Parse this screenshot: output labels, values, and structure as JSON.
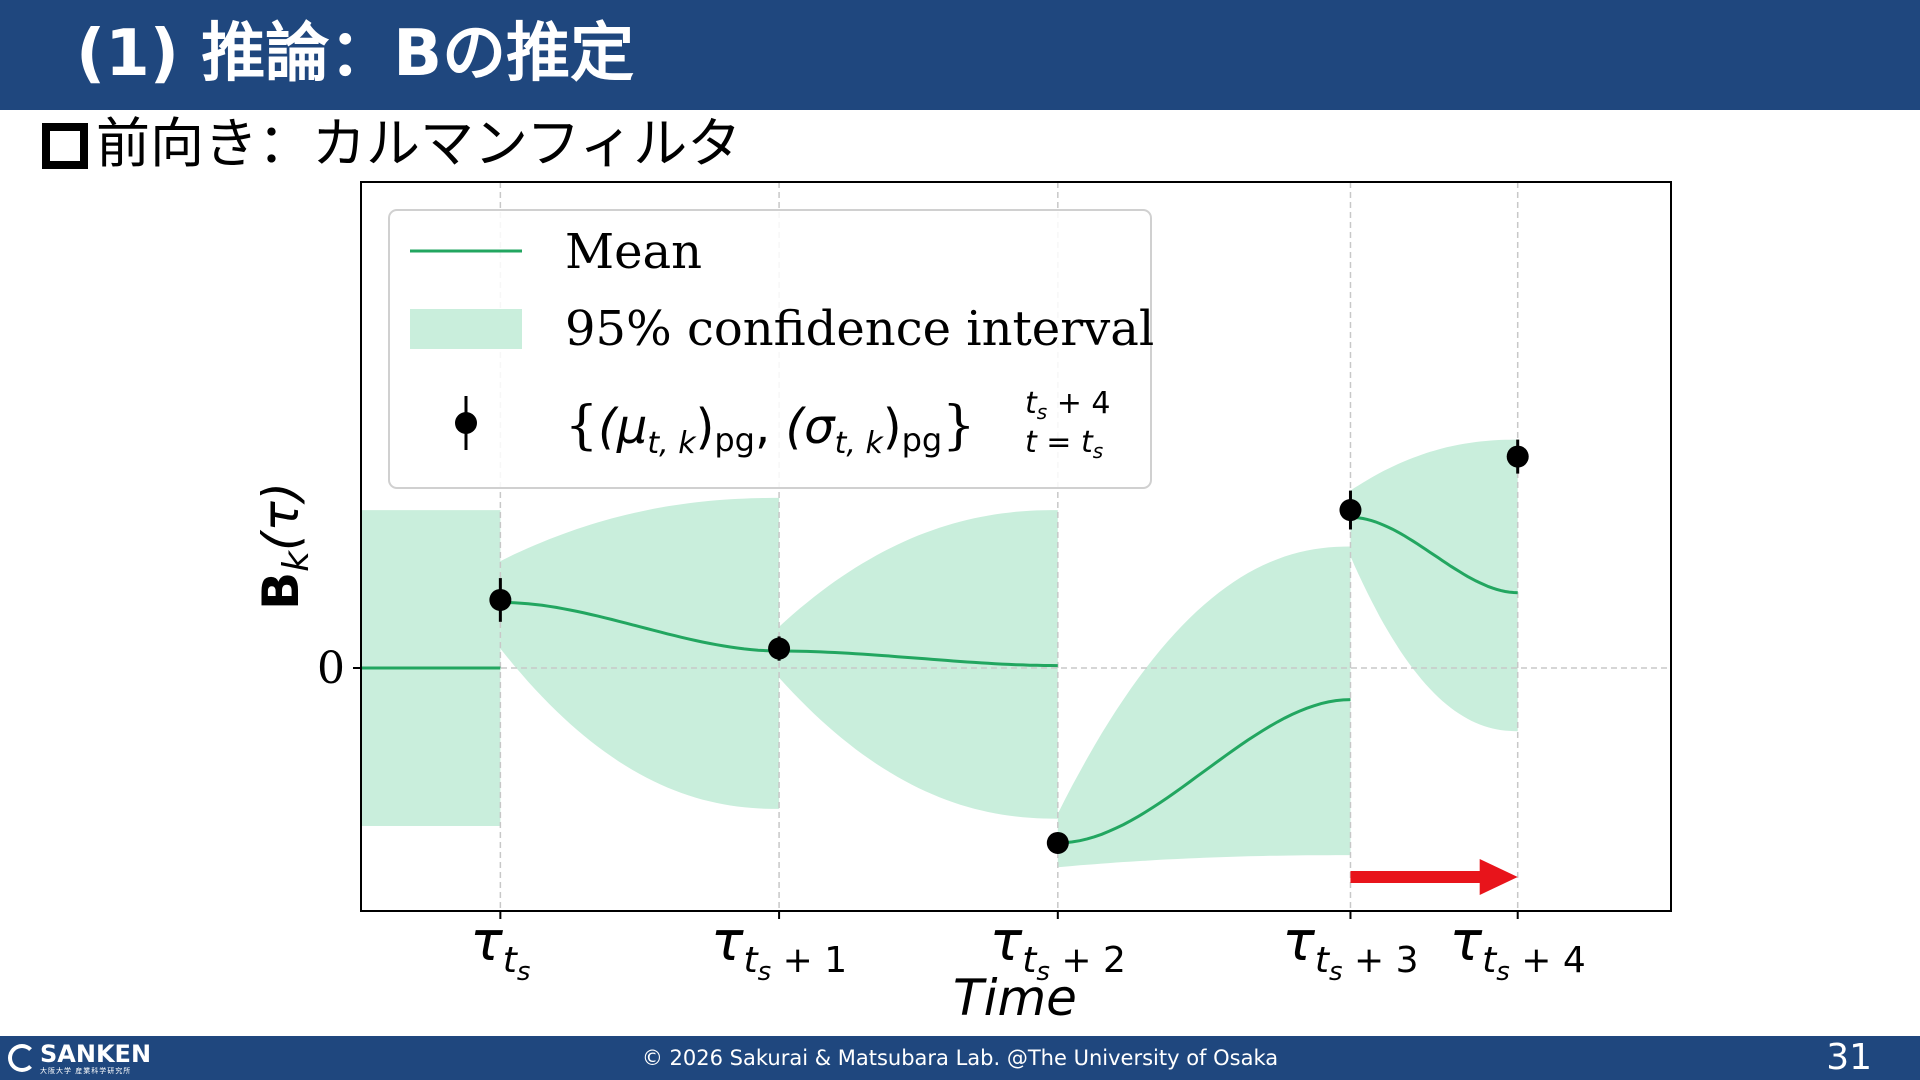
{
  "slide": {
    "title": "(1) 推論：Bの推定",
    "subheading": "前向き：カルマンフィルタ",
    "copyright": "© 2026 Sakurai & Matsubara Lab. @The University of Osaka",
    "page_number": "31",
    "logo_text": "SANKEN",
    "logo_sub": "大阪大学 産業科学研究所",
    "colors": {
      "header": "#1f477e",
      "mean": "#22a660",
      "band": "#c9eedc",
      "arrow": "#e8141b"
    }
  },
  "chart_data": {
    "type": "line",
    "xlabel": "Time",
    "ylabel_main": "B",
    "ylabel_sub": "k",
    "ylabel_tail": "(τ)",
    "x_ticks": [
      {
        "x": 0,
        "main": "τ",
        "sub": "t",
        "subsub": "s",
        "tail": ""
      },
      {
        "x": 1,
        "main": "τ",
        "sub": "t",
        "subsub": "s",
        "tail": " + 1"
      },
      {
        "x": 2,
        "main": "τ",
        "sub": "t",
        "subsub": "s",
        "tail": " + 2"
      },
      {
        "x": 3.05,
        "main": "τ",
        "sub": "t",
        "subsub": "s",
        "tail": " + 3"
      },
      {
        "x": 3.65,
        "main": "τ",
        "sub": "t",
        "subsub": "s",
        "tail": " + 4"
      }
    ],
    "y_ticks": [
      {
        "y": 0,
        "label": "0"
      }
    ],
    "xlim": [
      -0.5,
      4.2
    ],
    "ylim": [
      -1.0,
      2.0
    ],
    "grid": true,
    "legend_position": "top-left",
    "legend": {
      "mean": "Mean",
      "band": "95% confidence interval",
      "obs_open": "{",
      "obs_mu": "(μ",
      "obs_mu_sub": "t, k",
      "obs_pg1": "pg",
      "obs_comma": ", ",
      "obs_sigma": "(σ",
      "obs_sigma_sub": "t, k",
      "obs_pg2": "pg",
      "obs_close": "}",
      "obs_upper_a": "t",
      "obs_upper_s": "s",
      "obs_upper_b": " + 4",
      "obs_lower_a": "t = t",
      "obs_lower_s": "s"
    },
    "observations": [
      {
        "x": 0,
        "y": 0.28,
        "err": 0.09
      },
      {
        "x": 1,
        "y": 0.08,
        "err": 0.05
      },
      {
        "x": 2,
        "y": -0.72,
        "err": 0.04
      },
      {
        "x": 3.05,
        "y": 0.65,
        "err": 0.08
      },
      {
        "x": 3.65,
        "y": 0.87,
        "err": 0.07
      }
    ],
    "segments": [
      {
        "x0": -0.5,
        "x1": 0,
        "mean_start": 0,
        "mean_end": 0,
        "upper_start": 0.65,
        "upper_end": 0.65,
        "lower_start": -0.65,
        "lower_end": -0.65
      },
      {
        "x0": 0,
        "x1": 1,
        "mean_start": 0.27,
        "mean_end": 0.07,
        "upper_start": 0.44,
        "upper_end": 0.7,
        "lower_start": 0.08,
        "lower_end": -0.58
      },
      {
        "x0": 1,
        "x1": 2,
        "mean_start": 0.07,
        "mean_end": 0.01,
        "upper_start": 0.17,
        "upper_end": 0.65,
        "lower_start": -0.04,
        "lower_end": -0.62
      },
      {
        "x0": 2,
        "x1": 3.05,
        "mean_start": -0.72,
        "mean_end": -0.13,
        "upper_start": -0.6,
        "upper_end": 0.5,
        "lower_start": -0.82,
        "lower_end": -0.77
      },
      {
        "x0": 3.05,
        "x1": 3.65,
        "mean_start": 0.62,
        "mean_end": 0.31,
        "upper_start": 0.73,
        "upper_end": 0.94,
        "lower_start": 0.46,
        "lower_end": -0.26
      }
    ],
    "arrow": {
      "x0": 3.05,
      "x1": 3.65,
      "y": -0.86
    }
  }
}
